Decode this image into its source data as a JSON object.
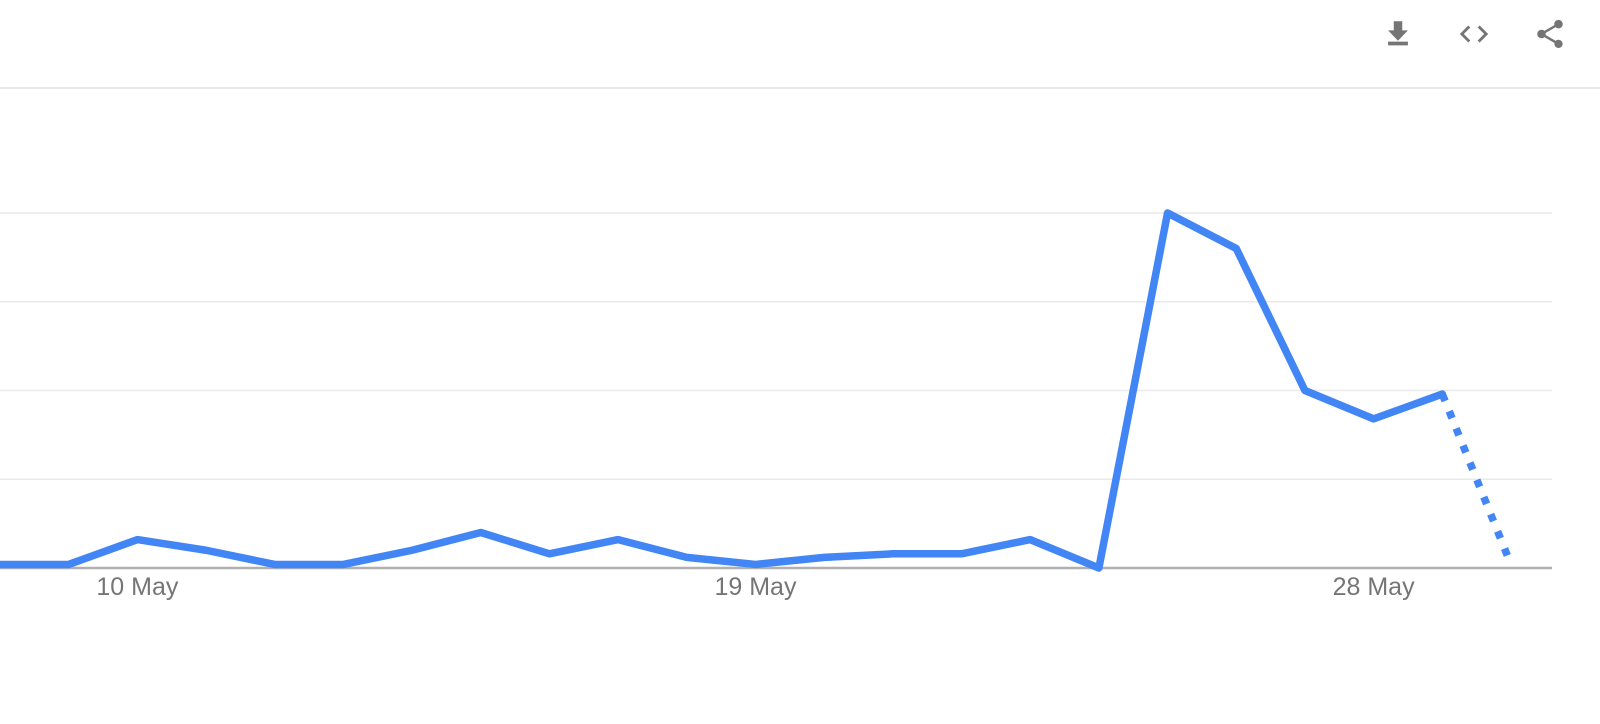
{
  "toolbar": {
    "icon_color": "#757575",
    "icons": [
      {
        "name": "download-icon"
      },
      {
        "name": "embed-code-icon"
      },
      {
        "name": "share-icon"
      }
    ]
  },
  "chart_data": {
    "type": "line",
    "x": [
      "8 May",
      "9 May",
      "10 May",
      "11 May",
      "12 May",
      "13 May",
      "14 May",
      "15 May",
      "16 May",
      "17 May",
      "18 May",
      "19 May",
      "20 May",
      "21 May",
      "22 May",
      "23 May",
      "24 May",
      "25 May",
      "26 May",
      "27 May",
      "28 May",
      "29 May",
      "30 May"
    ],
    "series": [
      {
        "name": "interest-over-time",
        "values": [
          1,
          1,
          8,
          5,
          1,
          1,
          5,
          10,
          4,
          8,
          3,
          1,
          3,
          4,
          4,
          8,
          0,
          100,
          90,
          50,
          42,
          49,
          1
        ]
      }
    ],
    "partial_data_from_index": 21,
    "tick_labels": [
      "10 May",
      "19 May",
      "28 May"
    ],
    "tick_indices": [
      2,
      11,
      20
    ],
    "ylim": [
      0,
      100
    ],
    "grid_values": [
      25,
      50,
      75,
      100
    ],
    "grid_on": true,
    "legend": "none",
    "title": "",
    "xlabel": "",
    "ylabel": "",
    "line_color": "#4285f4",
    "grid_color": "#e9e9e9",
    "axis_color": "#b0b0b0",
    "label_color": "#757575"
  }
}
